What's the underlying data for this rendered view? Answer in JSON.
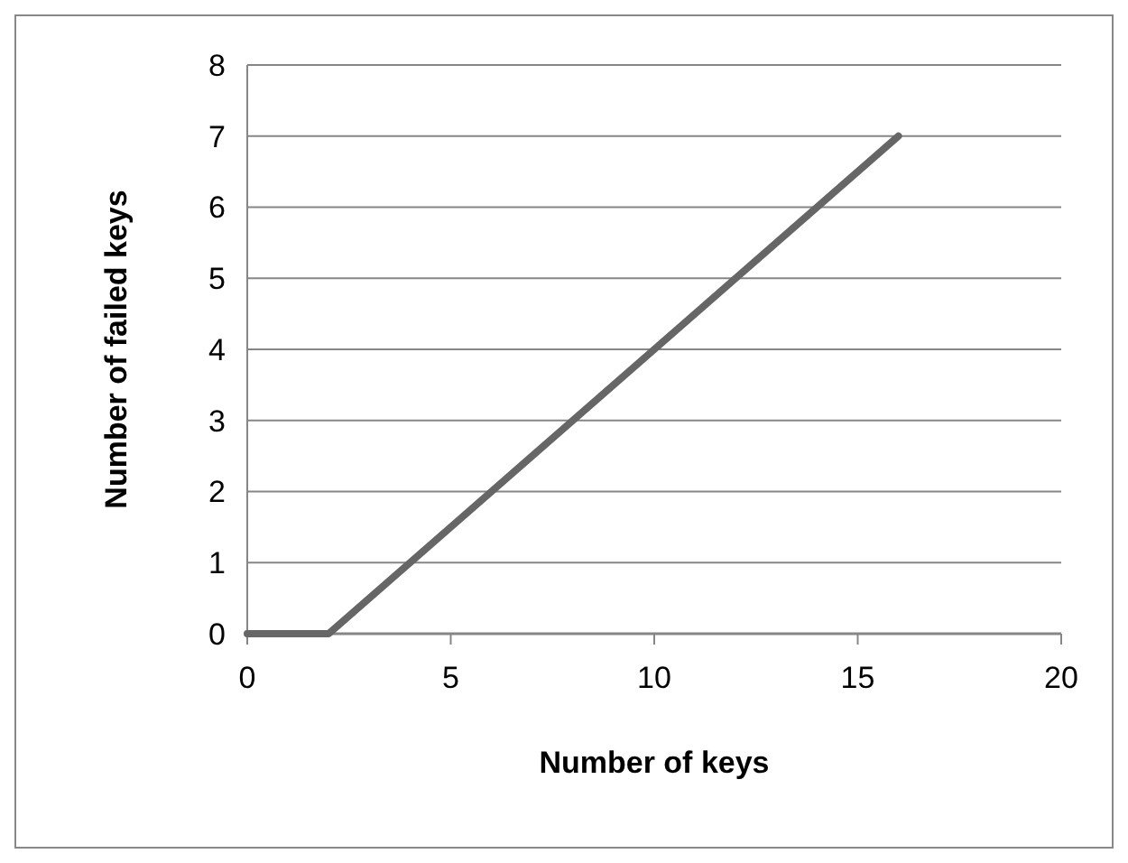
{
  "chart_data": {
    "type": "line",
    "xlabel": "Number of  keys",
    "ylabel": "Number of failed keys",
    "x": [
      0,
      2,
      16
    ],
    "series": [
      {
        "color": "#666666",
        "values": [
          0,
          0,
          7
        ]
      }
    ],
    "xlim": [
      0,
      20
    ],
    "xticks": [
      0,
      5,
      10,
      15,
      20
    ],
    "ylim": [
      0,
      8
    ],
    "yticks": [
      0,
      1,
      2,
      3,
      4,
      5,
      6,
      7,
      8
    ],
    "grid": "y",
    "marker": "none",
    "line_style": "solid"
  }
}
